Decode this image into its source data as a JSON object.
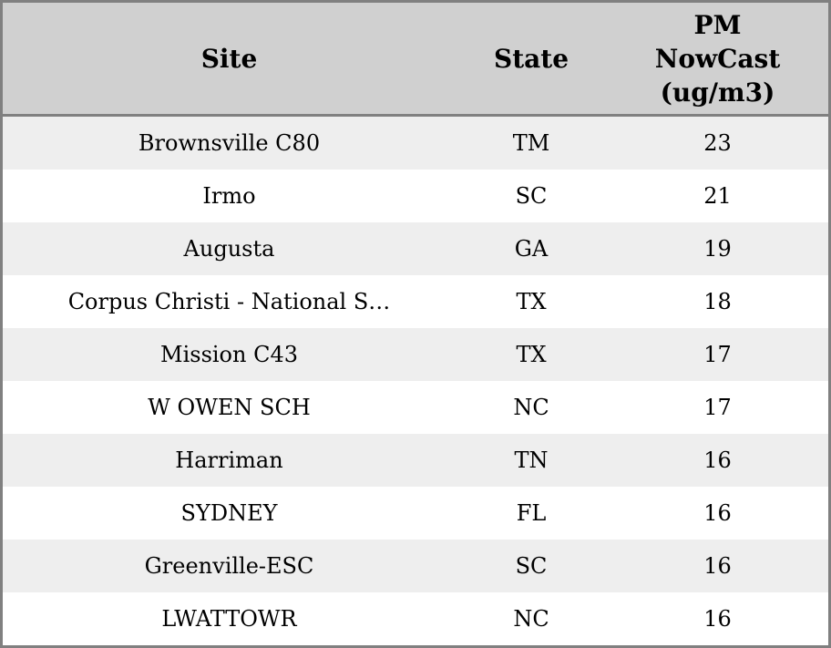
{
  "colors": {
    "border": "#808080",
    "header_bg": "#d0d0d0",
    "row_alt_bg": "#eeeeee",
    "row_bg": "#ffffff",
    "text": "#000000"
  },
  "header": {
    "site": "Site",
    "state": "State",
    "pm": "PM\nNowCast\n(ug/m3)"
  },
  "chart_data": {
    "type": "table",
    "columns": [
      "Site",
      "State",
      "PM NowCast (ug/m3)"
    ],
    "sort": "PM NowCast descending",
    "rows": [
      {
        "site": "Brownsville C80",
        "state": "TM",
        "pm": 23
      },
      {
        "site": "Irmo",
        "state": "SC",
        "pm": 21
      },
      {
        "site": "Augusta",
        "state": "GA",
        "pm": 19
      },
      {
        "site": "Corpus Christi - National S…",
        "state": "TX",
        "pm": 18
      },
      {
        "site": "Mission C43",
        "state": "TX",
        "pm": 17
      },
      {
        "site": "W OWEN SCH",
        "state": "NC",
        "pm": 17
      },
      {
        "site": "Harriman",
        "state": "TN",
        "pm": 16
      },
      {
        "site": "SYDNEY",
        "state": "FL",
        "pm": 16
      },
      {
        "site": "Greenville-ESC",
        "state": "SC",
        "pm": 16
      },
      {
        "site": "LWATTOWR",
        "state": "NC",
        "pm": 16
      }
    ]
  }
}
